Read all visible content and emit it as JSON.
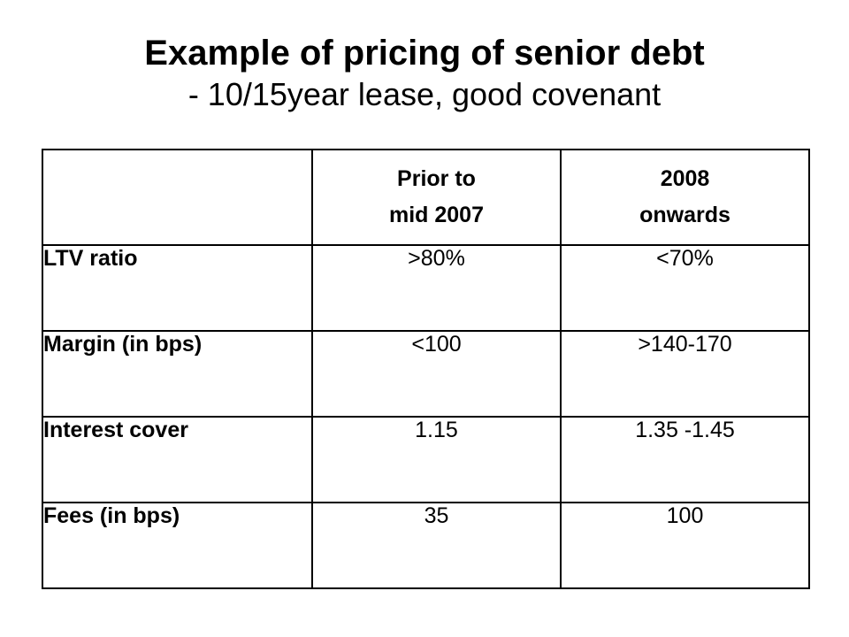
{
  "slide": {
    "title": "Example of pricing of senior debt",
    "subtitle": "- 10/15year lease, good covenant"
  },
  "table": {
    "columns": [
      {
        "line1": "",
        "line2": ""
      },
      {
        "line1": "Prior to",
        "line2": "mid 2007"
      },
      {
        "line1": "2008",
        "line2": "onwards"
      }
    ],
    "rows": [
      {
        "label": "LTV ratio",
        "prior": ">80%",
        "after": "<70%"
      },
      {
        "label": "Margin (in bps)",
        "prior": "<100",
        "after": ">140-170"
      },
      {
        "label": "Interest cover",
        "prior": "1.15",
        "after": "1.35 -1.45"
      },
      {
        "label": "Fees (in bps)",
        "prior": "35",
        "after": "100"
      }
    ]
  }
}
